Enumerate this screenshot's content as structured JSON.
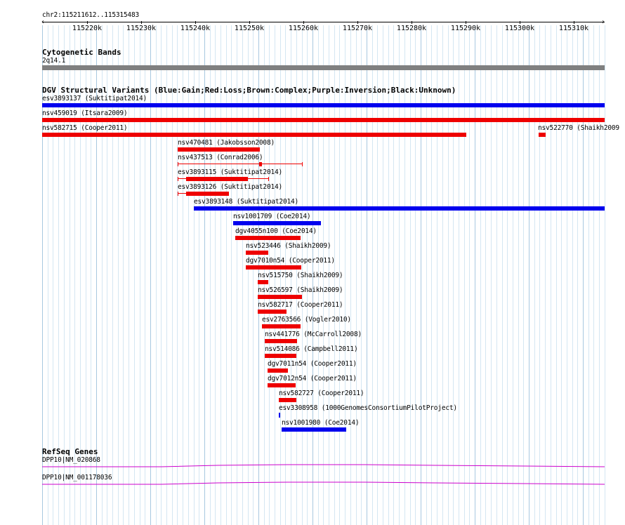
{
  "ruler": {
    "range_label": "chr2:115211612..115315483",
    "ticks": [
      "115220k",
      "115230k",
      "115240k",
      "115250k",
      "115260k",
      "115270k",
      "115280k",
      "115290k",
      "115300k",
      "115310k"
    ]
  },
  "cytoband": {
    "title": "Cytogenetic Bands",
    "band": "2q14.1"
  },
  "dgv": {
    "title": "DGV Structural Variants (Blue:Gain;Red:Loss;Brown:Complex;Purple:Inversion;Black:Unknown)",
    "colors": {
      "gain": "#0000ee",
      "loss": "#ee0000"
    },
    "features": [
      {
        "name": "esv3893137",
        "source": "(Suktitipat2014)",
        "type": "gain"
      },
      {
        "name": "nsv459019",
        "source": "(Itsara2009)",
        "type": "loss"
      },
      {
        "name": "nsv582715",
        "source": "(Cooper2011)",
        "type": "loss"
      },
      {
        "name": "nsv522770",
        "source": "(Shaikh2009",
        "type": "loss"
      },
      {
        "name": "nsv470481",
        "source": "(Jakobsson2008)",
        "type": "loss"
      },
      {
        "name": "nsv437513",
        "source": "(Conrad2006)",
        "type": "loss"
      },
      {
        "name": "esv3893115",
        "source": "(Suktitipat2014)",
        "type": "loss"
      },
      {
        "name": "esv3893126",
        "source": "(Suktitipat2014)",
        "type": "loss"
      },
      {
        "name": "esv3893148",
        "source": "(Suktitipat2014)",
        "type": "gain"
      },
      {
        "name": "nsv1001709",
        "source": "(Coe2014)",
        "type": "gain"
      },
      {
        "name": "dgv4055n100",
        "source": "(Coe2014)",
        "type": "loss"
      },
      {
        "name": "nsv523446",
        "source": "(Shaikh2009)",
        "type": "loss"
      },
      {
        "name": "dgv7010n54",
        "source": "(Cooper2011)",
        "type": "loss"
      },
      {
        "name": "nsv515750",
        "source": "(Shaikh2009)",
        "type": "loss"
      },
      {
        "name": "nsv526597",
        "source": "(Shaikh2009)",
        "type": "loss"
      },
      {
        "name": "nsv582717",
        "source": "(Cooper2011)",
        "type": "loss"
      },
      {
        "name": "esv2763566",
        "source": "(Vogler2010)",
        "type": "loss"
      },
      {
        "name": "nsv441776",
        "source": "(McCarroll2008)",
        "type": "loss"
      },
      {
        "name": "nsv514086",
        "source": "(Campbell2011)",
        "type": "loss"
      },
      {
        "name": "dgv7011n54",
        "source": "(Cooper2011)",
        "type": "loss"
      },
      {
        "name": "dgv7012n54",
        "source": "(Cooper2011)",
        "type": "loss"
      },
      {
        "name": "nsv582727",
        "source": "(Cooper2011)",
        "type": "loss"
      },
      {
        "name": "esv3308958",
        "source": "(1000GenomesConsortiumPilotProject)",
        "type": "gain"
      },
      {
        "name": "nsv1001980",
        "source": "(Coe2014)",
        "type": "gain"
      }
    ]
  },
  "refseq": {
    "title": "RefSeq Genes",
    "color": "#cc00cc",
    "genes": [
      {
        "name": "DPP10|NM_020868"
      },
      {
        "name": "DPP10|NM_001178036"
      }
    ]
  }
}
